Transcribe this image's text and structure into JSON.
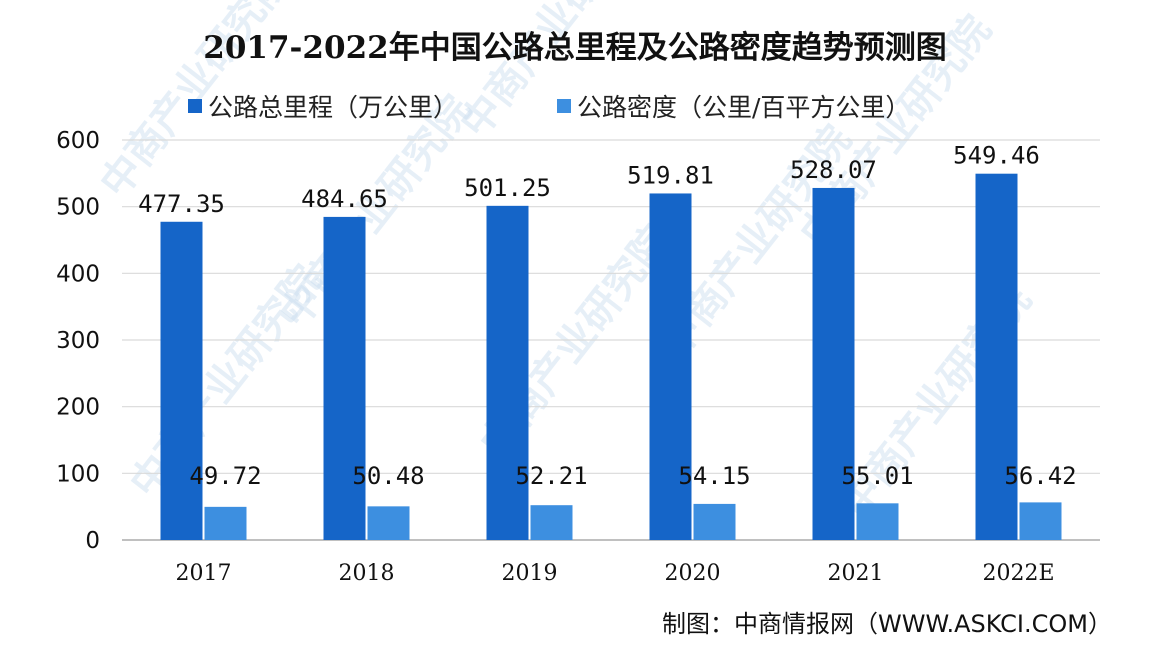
{
  "chart_data": {
    "type": "bar",
    "title": "2017-2022年中国公路总里程及公路密度趋势预测图",
    "categories": [
      "2017",
      "2018",
      "2019",
      "2020",
      "2021",
      "2022E"
    ],
    "series": [
      {
        "name": "公路总里程（万公里）",
        "values": [
          477.35,
          484.65,
          501.25,
          519.81,
          528.07,
          549.46
        ],
        "labels": [
          "477.35",
          "484.65",
          "501.25",
          "519.81",
          "528.07",
          "549.46"
        ],
        "color": "#1565c8"
      },
      {
        "name": "公路密度（公里/百平方公里）",
        "values": [
          49.72,
          50.48,
          52.21,
          54.15,
          55.01,
          56.42
        ],
        "labels": [
          "49.72",
          "50.48",
          "52.21",
          "54.15",
          "55.01",
          "56.42"
        ],
        "color": "#3d8fe0"
      }
    ],
    "ylim": [
      0,
      600
    ],
    "yticks": [
      "0",
      "100",
      "200",
      "300",
      "400",
      "500",
      "600"
    ],
    "xlabel": "",
    "ylabel": "",
    "grid": true,
    "legend_position": "top"
  },
  "source_note": "制图：中商情报网（WWW.ASKCI.COM）",
  "watermark": "中商产业研究院"
}
